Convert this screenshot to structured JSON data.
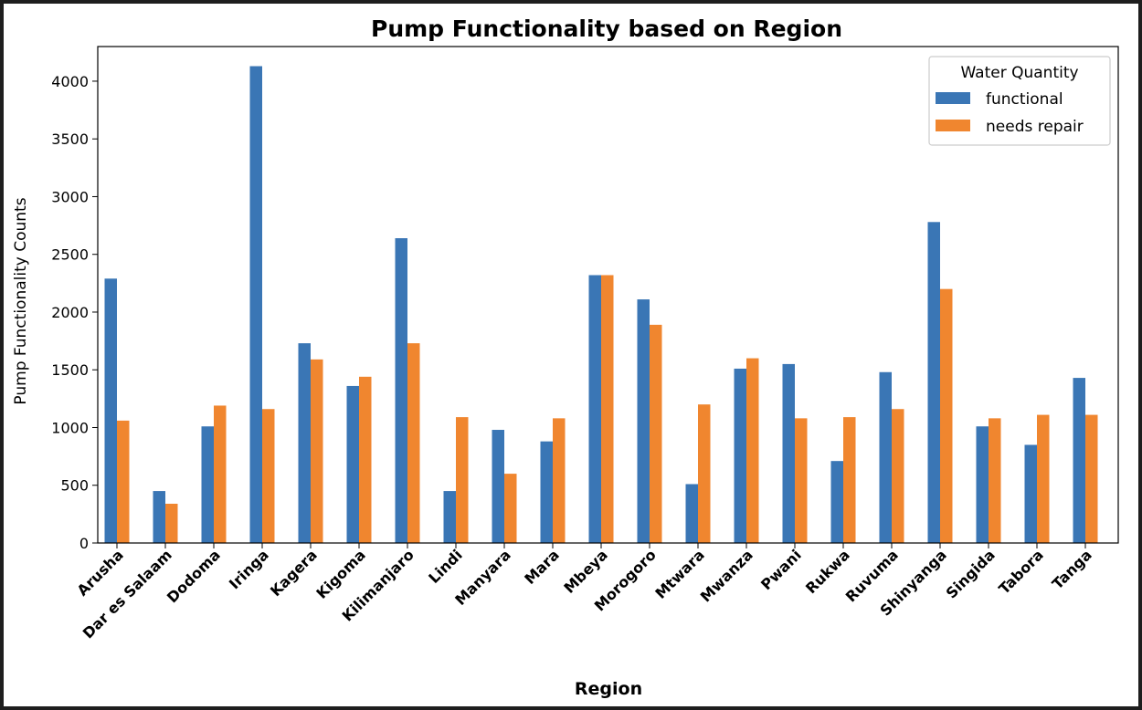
{
  "chart_data": {
    "type": "bar",
    "title": "Pump Functionality based on Region",
    "xlabel": "Region",
    "ylabel": "Pump Functionality Counts",
    "ylim": [
      0,
      4300
    ],
    "yticks": [
      0,
      500,
      1000,
      1500,
      2000,
      2500,
      3000,
      3500,
      4000
    ],
    "grid": false,
    "legend_title": "Water Quantity",
    "legend_position": "top-right",
    "categories": [
      "Arusha",
      "Dar es Salaam",
      "Dodoma",
      "Iringa",
      "Kagera",
      "Kigoma",
      "Kilimanjaro",
      "Lindi",
      "Manyara",
      "Mara",
      "Mbeya",
      "Morogoro",
      "Mtwara",
      "Mwanza",
      "Pwani",
      "Rukwa",
      "Ruvuma",
      "Shinyanga",
      "Singida",
      "Tabora",
      "Tanga"
    ],
    "series": [
      {
        "name": "functional",
        "color": "#3a76b5",
        "values": [
          2290,
          450,
          1010,
          4130,
          1730,
          1360,
          2640,
          450,
          980,
          880,
          2320,
          2110,
          510,
          1510,
          1550,
          710,
          1480,
          2780,
          1010,
          850,
          1430
        ]
      },
      {
        "name": "needs repair",
        "color": "#f0862f",
        "values": [
          1060,
          340,
          1190,
          1160,
          1590,
          1440,
          1730,
          1090,
          600,
          1080,
          2320,
          1890,
          1200,
          1600,
          1080,
          1090,
          1160,
          2200,
          1080,
          1110,
          1110
        ]
      }
    ]
  }
}
